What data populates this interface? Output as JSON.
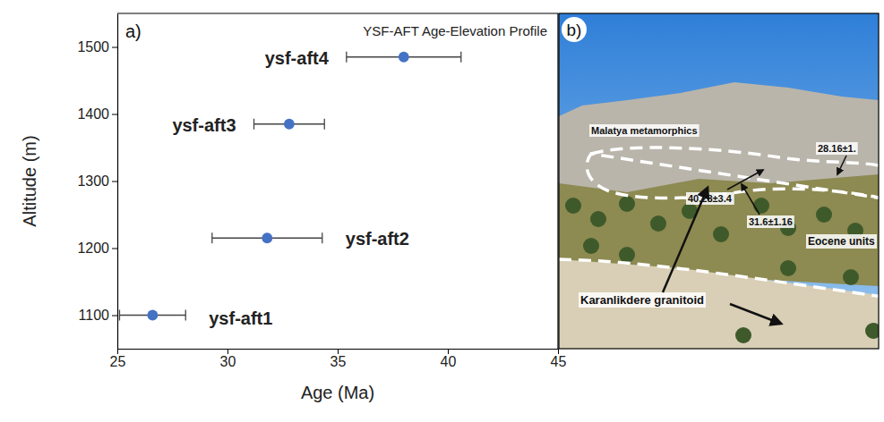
{
  "chart_data": {
    "type": "scatter",
    "panel_label": "a)",
    "title": "YSF-AFT Age-Elevation Profile",
    "x_label": "Age (Ma)",
    "y_label": "Altitude (m)",
    "x": [
      26.6,
      31.8,
      32.8,
      38.0
    ],
    "values": [
      1100,
      1215,
      1385,
      1485
    ],
    "x_errors": [
      1.5,
      2.5,
      1.6,
      2.6
    ],
    "point_labels": [
      "ysf-aft1",
      "ysf-aft2",
      "ysf-aft3",
      "ysf-aft4"
    ],
    "color": "#4472c4",
    "marker": "circle",
    "xlim": [
      25,
      45
    ],
    "ylim": [
      1050,
      1550
    ],
    "xticks": [
      25,
      30,
      35,
      40,
      45
    ],
    "yticks": [
      1100,
      1200,
      1300,
      1400,
      1500
    ],
    "grid": false
  },
  "photo_panel": {
    "panel_label": "b)",
    "annotations": [
      "Malatya metamorphics",
      "28.16±1.",
      "40.28±3.4",
      "31.6±1.16",
      "Eocene units",
      "Karanlikdere granitoid"
    ]
  }
}
